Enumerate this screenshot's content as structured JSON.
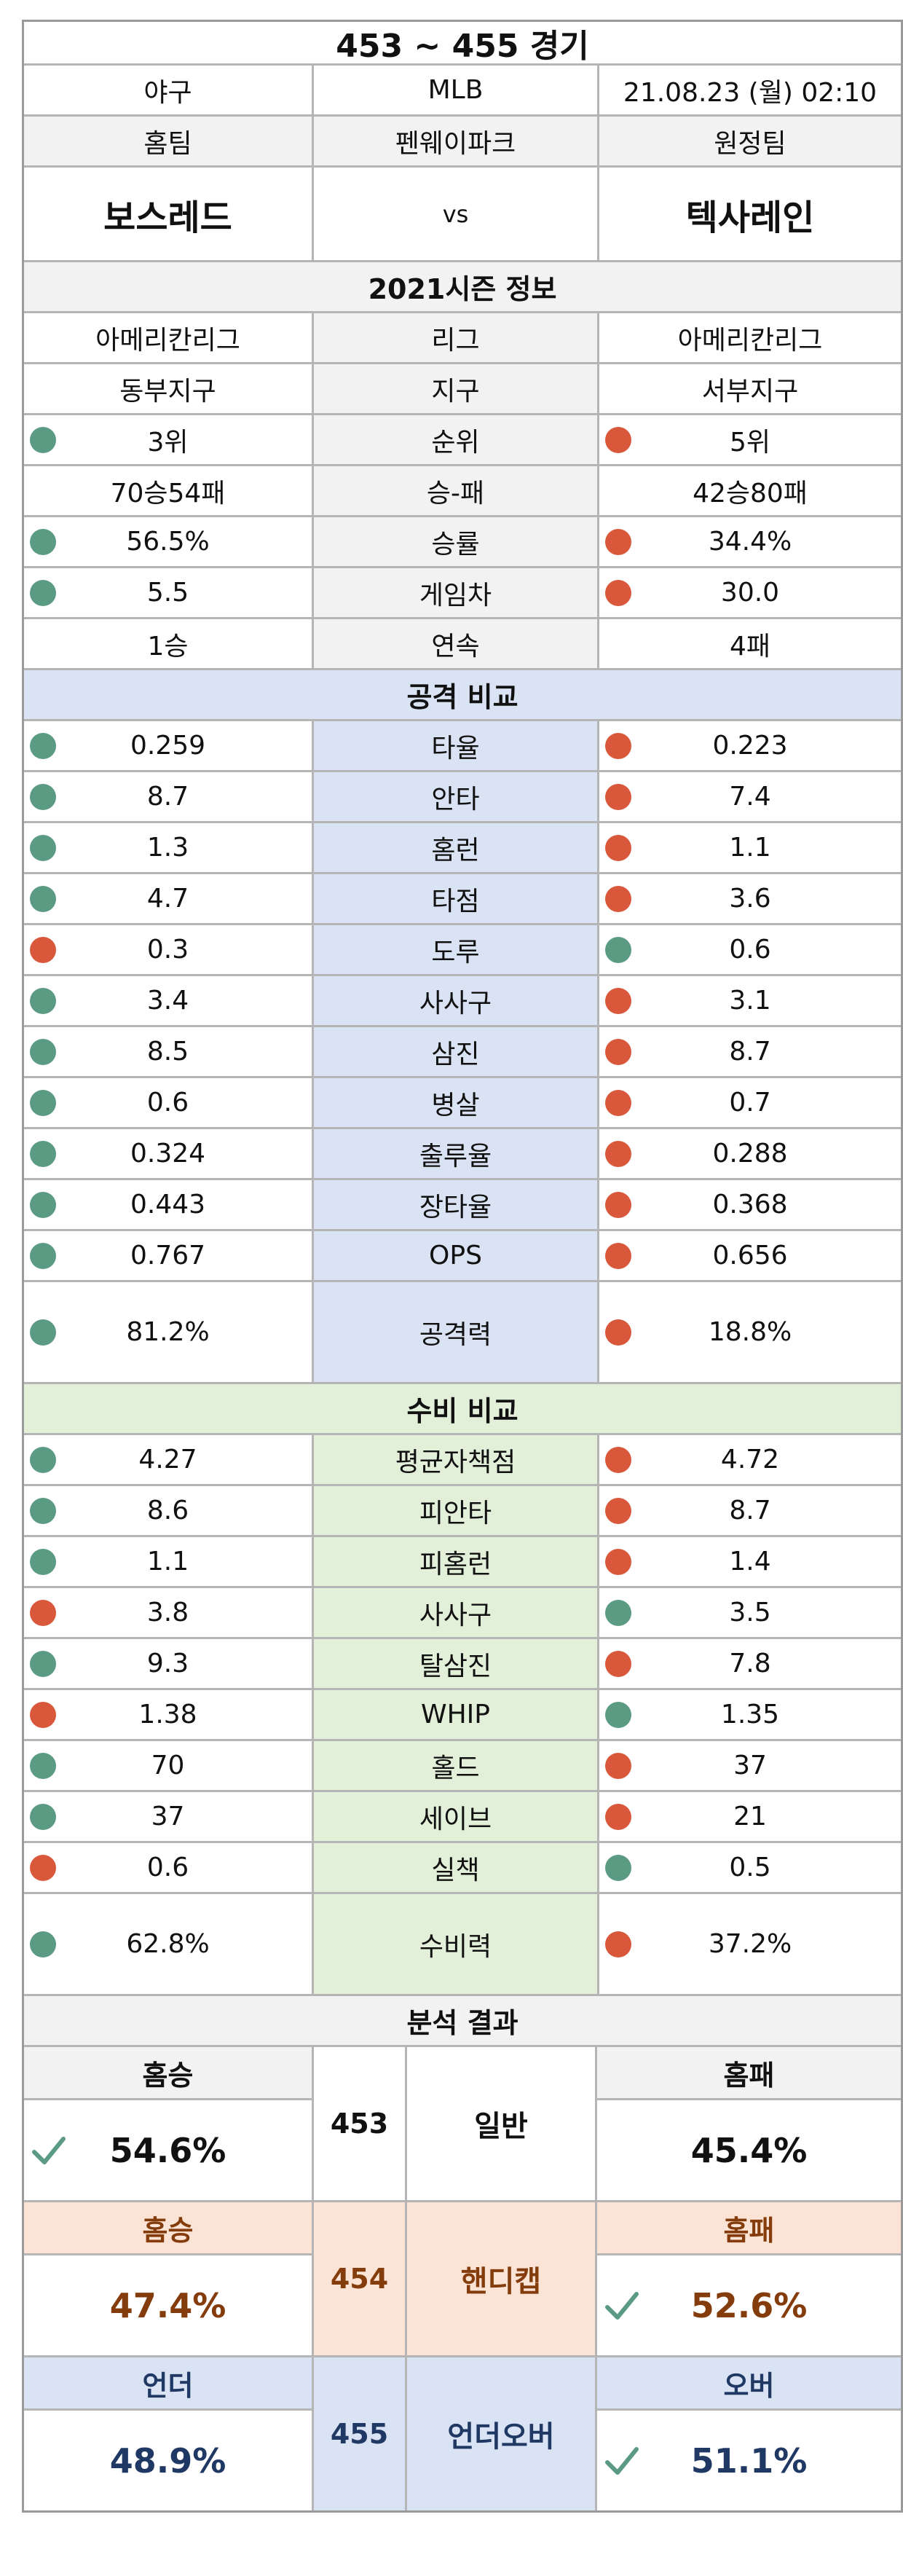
{
  "title": "453 ~ 455 경기",
  "info": {
    "sport": "야구",
    "league": "MLB",
    "datetime": "21.08.23 (월) 02:10"
  },
  "teams_header": {
    "home_label": "홈팀",
    "stadium": "펜웨이파크",
    "away_label": "원정팀"
  },
  "teams": {
    "home": "보스레드",
    "vs": "vs",
    "away": "텍사레인"
  },
  "season": {
    "title": "2021시즌 정보",
    "rows": [
      {
        "label": "리그",
        "home": "아메리칸리그",
        "away": "아메리칸리그",
        "home_dot": "",
        "away_dot": ""
      },
      {
        "label": "지구",
        "home": "동부지구",
        "away": "서부지구",
        "home_dot": "",
        "away_dot": ""
      },
      {
        "label": "순위",
        "home": "3위",
        "away": "5위",
        "home_dot": "green",
        "away_dot": "orange"
      },
      {
        "label": "승-패",
        "home": "70승54패",
        "away": "42승80패",
        "home_dot": "",
        "away_dot": ""
      },
      {
        "label": "승률",
        "home": "56.5%",
        "away": "34.4%",
        "home_dot": "green",
        "away_dot": "orange"
      },
      {
        "label": "게임차",
        "home": "5.5",
        "away": "30.0",
        "home_dot": "green",
        "away_dot": "orange"
      },
      {
        "label": "연속",
        "home": "1승",
        "away": "4패",
        "home_dot": "",
        "away_dot": ""
      }
    ]
  },
  "attack": {
    "title": "공격 비교",
    "rows": [
      {
        "label": "타율",
        "home": "0.259",
        "away": "0.223",
        "home_dot": "green",
        "away_dot": "orange"
      },
      {
        "label": "안타",
        "home": "8.7",
        "away": "7.4",
        "home_dot": "green",
        "away_dot": "orange"
      },
      {
        "label": "홈런",
        "home": "1.3",
        "away": "1.1",
        "home_dot": "green",
        "away_dot": "orange"
      },
      {
        "label": "타점",
        "home": "4.7",
        "away": "3.6",
        "home_dot": "green",
        "away_dot": "orange"
      },
      {
        "label": "도루",
        "home": "0.3",
        "away": "0.6",
        "home_dot": "orange",
        "away_dot": "green"
      },
      {
        "label": "사사구",
        "home": "3.4",
        "away": "3.1",
        "home_dot": "green",
        "away_dot": "orange"
      },
      {
        "label": "삼진",
        "home": "8.5",
        "away": "8.7",
        "home_dot": "green",
        "away_dot": "orange"
      },
      {
        "label": "병살",
        "home": "0.6",
        "away": "0.7",
        "home_dot": "green",
        "away_dot": "orange"
      },
      {
        "label": "출루율",
        "home": "0.324",
        "away": "0.288",
        "home_dot": "green",
        "away_dot": "orange"
      },
      {
        "label": "장타율",
        "home": "0.443",
        "away": "0.368",
        "home_dot": "green",
        "away_dot": "orange"
      },
      {
        "label": "OPS",
        "home": "0.767",
        "away": "0.656",
        "home_dot": "green",
        "away_dot": "orange"
      },
      {
        "label": "공격력",
        "home": "81.2%",
        "away": "18.8%",
        "home_dot": "green",
        "away_dot": "orange",
        "tall": true
      }
    ]
  },
  "defense": {
    "title": "수비 비교",
    "rows": [
      {
        "label": "평균자책점",
        "home": "4.27",
        "away": "4.72",
        "home_dot": "green",
        "away_dot": "orange"
      },
      {
        "label": "피안타",
        "home": "8.6",
        "away": "8.7",
        "home_dot": "green",
        "away_dot": "orange"
      },
      {
        "label": "피홈런",
        "home": "1.1",
        "away": "1.4",
        "home_dot": "green",
        "away_dot": "orange"
      },
      {
        "label": "사사구",
        "home": "3.8",
        "away": "3.5",
        "home_dot": "orange",
        "away_dot": "green"
      },
      {
        "label": "탈삼진",
        "home": "9.3",
        "away": "7.8",
        "home_dot": "green",
        "away_dot": "orange"
      },
      {
        "label": "WHIP",
        "home": "1.38",
        "away": "1.35",
        "home_dot": "orange",
        "away_dot": "green"
      },
      {
        "label": "홀드",
        "home": "70",
        "away": "37",
        "home_dot": "green",
        "away_dot": "orange"
      },
      {
        "label": "세이브",
        "home": "37",
        "away": "21",
        "home_dot": "green",
        "away_dot": "orange"
      },
      {
        "label": "실책",
        "home": "0.6",
        "away": "0.5",
        "home_dot": "orange",
        "away_dot": "green"
      },
      {
        "label": "수비력",
        "home": "62.8%",
        "away": "37.2%",
        "home_dot": "green",
        "away_dot": "orange",
        "tall": true
      }
    ]
  },
  "analysis": {
    "title": "분석 결과",
    "sections": [
      {
        "num": "453",
        "label": "일반",
        "left_head": "홈승",
        "left_value": "54.6%",
        "right_head": "홈패",
        "right_value": "45.4%",
        "check": "left"
      },
      {
        "num": "454",
        "label": "핸디캡",
        "left_head": "홈승",
        "left_value": "47.4%",
        "right_head": "홈패",
        "right_value": "52.6%",
        "check": "right"
      },
      {
        "num": "455",
        "label": "언더오버",
        "left_head": "언더",
        "left_value": "48.9%",
        "right_head": "오버",
        "right_value": "51.1%",
        "check": "right"
      }
    ]
  },
  "colors": {
    "green_dot": "#5b9a83",
    "orange_dot": "#d9583b",
    "attack_bg": "#dae3f3",
    "defense_bg": "#e2efd9",
    "handicap_bg": "#fbe4d5",
    "check": "#5b9a83"
  },
  "icons": {
    "dot": "status-dot-icon",
    "check": "check-icon"
  }
}
